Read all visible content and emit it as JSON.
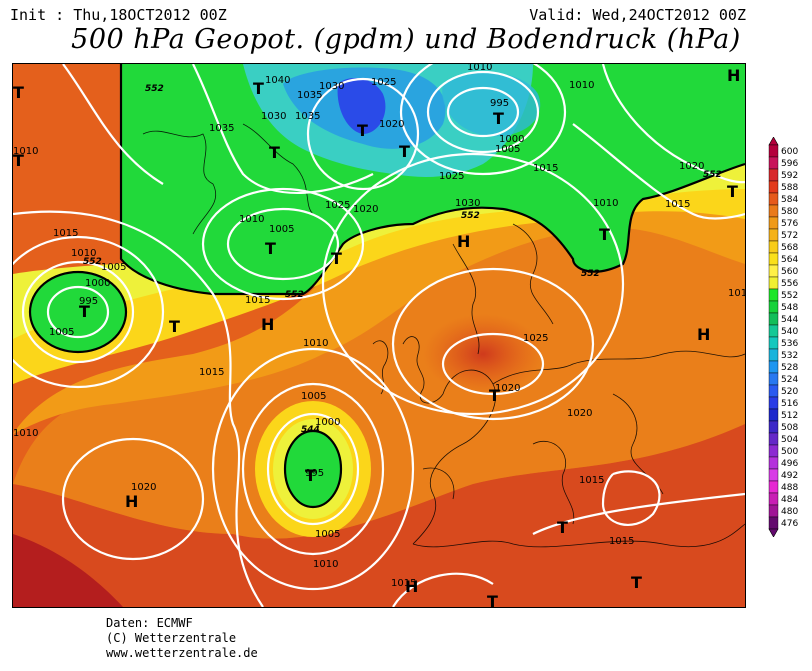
{
  "header": {
    "init": "Init : Thu,18OCT2012 00Z",
    "valid": "Valid: Wed,24OCT2012 00Z",
    "title": "500 hPa Geopot. (gpdm) und Bodendruck (hPa)"
  },
  "footer": {
    "line1": "Daten: ECMWF",
    "line2": "(C) Wetterzentrale",
    "line3": "www.wetterzentrale.de"
  },
  "legend": {
    "levels": [
      "600",
      "596",
      "592",
      "588",
      "584",
      "580",
      "576",
      "572",
      "568",
      "564",
      "560",
      "556",
      "552",
      "548",
      "544",
      "540",
      "536",
      "532",
      "528",
      "524",
      "520",
      "516",
      "512",
      "508",
      "504",
      "500",
      "496",
      "492",
      "488",
      "484",
      "480",
      "476"
    ],
    "colors": [
      "#b4003c",
      "#c8145a",
      "#d8282c",
      "#e33a1c",
      "#e65a1c",
      "#ea7a1a",
      "#f09a18",
      "#f5b21a",
      "#f8cc18",
      "#fae01a",
      "#fff046",
      "#f0f032",
      "#1ee628",
      "#16d23a",
      "#12be5a",
      "#14c896",
      "#14c8be",
      "#1ab4dc",
      "#1e96f0",
      "#2878f0",
      "#2a5af0",
      "#2a3ce6",
      "#1e28cc",
      "#3c28c8",
      "#6428c8",
      "#8c2ad2",
      "#b432dc",
      "#d83ce6",
      "#e628d2",
      "#c81eb4",
      "#a01496",
      "#640a6e"
    ]
  },
  "map_labels": {
    "pressure": [
      "1040",
      "1030",
      "1025",
      "1010",
      "1010",
      "1035",
      "1035",
      "1030",
      "1035",
      "995",
      "1020",
      "1000",
      "1005",
      "1015",
      "1020",
      "1025",
      "1030",
      "1010",
      "1015",
      "1020",
      "1025",
      "1010",
      "1005",
      "1010",
      "1015",
      "1005",
      "995",
      "1000",
      "1015",
      "1005",
      "1015",
      "1010",
      "1010",
      "1005",
      "1000",
      "995",
      "1005",
      "1010",
      "1020",
      "1025",
      "1020",
      "1020",
      "1015",
      "1015",
      "1010",
      "1015",
      "1010"
    ],
    "highs": [
      "H",
      "H",
      "H",
      "H",
      "H",
      "H"
    ],
    "lows": [
      "T",
      "T",
      "T",
      "T",
      "T",
      "T",
      "T",
      "T",
      "T",
      "T",
      "T",
      "T",
      "T",
      "T",
      "T",
      "T",
      "T",
      "T"
    ],
    "isohypses": [
      "552",
      "552",
      "552",
      "552",
      "552",
      "552",
      "544"
    ]
  }
}
